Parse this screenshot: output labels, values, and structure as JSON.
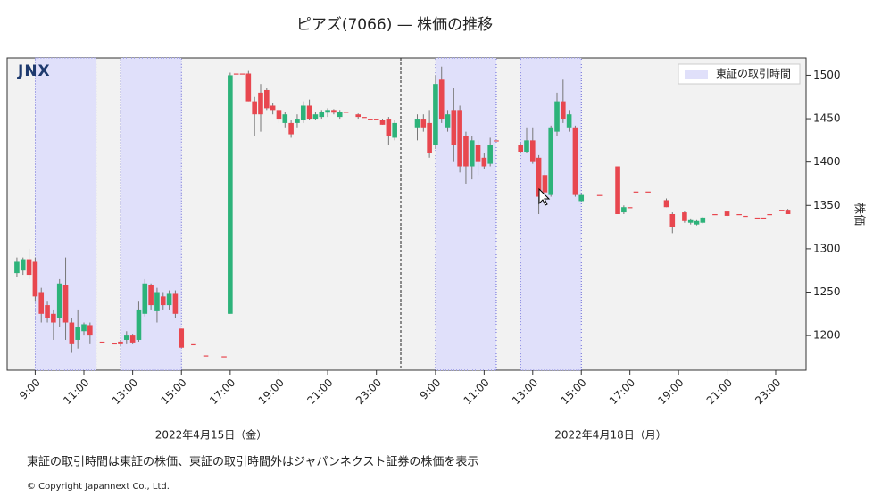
{
  "chart_data": {
    "type": "candlestick",
    "title": "ピアズ(7066) — 株価の推移",
    "logo": "JNX",
    "ylabel": "株価",
    "ylim": [
      1160,
      1520
    ],
    "yticks": [
      1200,
      1250,
      1300,
      1350,
      1400,
      1450,
      1500
    ],
    "up_color": "#2db37a",
    "down_color": "#e8474f",
    "legend": {
      "label": "東証の取引時間",
      "color": "#e0e0fa",
      "corner": "upper right"
    },
    "candle_fields": [
      "t",
      "o",
      "h",
      "l",
      "c"
    ],
    "sessions": [
      {
        "date": "2022年4月15日（金）",
        "xlim": [
          7.85,
          24
        ],
        "tse_hours": [
          [
            9,
            11.5
          ],
          [
            12.5,
            15
          ]
        ],
        "xticks": [
          {
            "value": 9,
            "label": "9:00"
          },
          {
            "value": 11,
            "label": "11:00"
          },
          {
            "value": 13,
            "label": "13:00"
          },
          {
            "value": 15,
            "label": "15:00"
          },
          {
            "value": 17,
            "label": "17:00"
          },
          {
            "value": 19,
            "label": "19:00"
          },
          {
            "value": 21,
            "label": "21:00"
          },
          {
            "value": 23,
            "label": "23:00"
          }
        ],
        "candles": [
          [
            8.25,
            1272,
            1290,
            1268,
            1285
          ],
          [
            8.5,
            1275,
            1290,
            1270,
            1288
          ],
          [
            8.75,
            1288,
            1300,
            1265,
            1270
          ],
          [
            9.0,
            1285,
            1290,
            1240,
            1245
          ],
          [
            9.25,
            1250,
            1255,
            1215,
            1225
          ],
          [
            9.5,
            1235,
            1240,
            1215,
            1220
          ],
          [
            9.75,
            1225,
            1230,
            1195,
            1215
          ],
          [
            10.0,
            1220,
            1265,
            1210,
            1260
          ],
          [
            10.25,
            1258,
            1290,
            1195,
            1215
          ],
          [
            10.5,
            1215,
            1220,
            1180,
            1190
          ],
          [
            10.75,
            1195,
            1230,
            1185,
            1210
          ],
          [
            11.0,
            1205,
            1215,
            1200,
            1213
          ],
          [
            11.25,
            1212,
            1215,
            1190,
            1200
          ],
          [
            11.75,
            1193,
            1193,
            1193,
            1193
          ],
          [
            12.25,
            1191,
            1191,
            1191,
            1191
          ],
          [
            12.5,
            1193,
            1195,
            1188,
            1190
          ],
          [
            12.75,
            1195,
            1205,
            1190,
            1200
          ],
          [
            13.0,
            1200,
            1202,
            1190,
            1192
          ],
          [
            13.25,
            1195,
            1240,
            1193,
            1230
          ],
          [
            13.5,
            1225,
            1265,
            1222,
            1260
          ],
          [
            13.75,
            1258,
            1260,
            1230,
            1235
          ],
          [
            14.0,
            1228,
            1255,
            1215,
            1250
          ],
          [
            14.25,
            1245,
            1250,
            1230,
            1235
          ],
          [
            14.5,
            1235,
            1252,
            1230,
            1248
          ],
          [
            14.75,
            1248,
            1252,
            1220,
            1225
          ],
          [
            15.0,
            1208,
            1208,
            1186,
            1186
          ],
          [
            15.5,
            1190,
            1190,
            1190,
            1190
          ],
          [
            16.0,
            1177,
            1177,
            1177,
            1177
          ],
          [
            16.75,
            1176,
            1176,
            1176,
            1176
          ],
          [
            17.0,
            1225,
            1503,
            1225,
            1500
          ],
          [
            17.25,
            1502,
            1502,
            1502,
            1502
          ],
          [
            17.5,
            1502,
            1502,
            1502,
            1502
          ],
          [
            17.75,
            1502,
            1505,
            1470,
            1470
          ],
          [
            18.0,
            1470,
            1475,
            1430,
            1455
          ],
          [
            18.25,
            1480,
            1490,
            1435,
            1455
          ],
          [
            18.5,
            1483,
            1485,
            1460,
            1462
          ],
          [
            18.75,
            1465,
            1468,
            1455,
            1460
          ],
          [
            19.0,
            1460,
            1462,
            1445,
            1450
          ],
          [
            19.25,
            1445,
            1458,
            1440,
            1455
          ],
          [
            19.5,
            1445,
            1448,
            1428,
            1432
          ],
          [
            19.75,
            1445,
            1455,
            1440,
            1450
          ],
          [
            20.0,
            1448,
            1470,
            1445,
            1465
          ],
          [
            20.25,
            1465,
            1472,
            1448,
            1450
          ],
          [
            20.5,
            1450,
            1458,
            1448,
            1455
          ],
          [
            20.75,
            1452,
            1460,
            1450,
            1458
          ],
          [
            21.0,
            1457,
            1462,
            1452,
            1460
          ],
          [
            21.25,
            1460,
            1461,
            1455,
            1457
          ],
          [
            21.5,
            1452,
            1460,
            1450,
            1458
          ],
          [
            21.75,
            1458,
            1458,
            1458,
            1458
          ],
          [
            22.25,
            1455,
            1456,
            1450,
            1452
          ],
          [
            22.5,
            1452,
            1452,
            1452,
            1452
          ],
          [
            22.75,
            1450,
            1450,
            1450,
            1450
          ],
          [
            23.0,
            1450,
            1450,
            1450,
            1450
          ],
          [
            23.25,
            1448,
            1450,
            1443,
            1443
          ],
          [
            23.5,
            1450,
            1452,
            1420,
            1430
          ],
          [
            23.75,
            1428,
            1448,
            1425,
            1445
          ]
        ]
      },
      {
        "date": "2022年4月18日（月）",
        "xlim": [
          7.57,
          24.25
        ],
        "tse_hours": [
          [
            9,
            11.5
          ],
          [
            12.5,
            15
          ]
        ],
        "xticks": [
          {
            "value": 9,
            "label": "9:00"
          },
          {
            "value": 11,
            "label": "11:00"
          },
          {
            "value": 13,
            "label": "13:00"
          },
          {
            "value": 15,
            "label": "15:00"
          },
          {
            "value": 17,
            "label": "17:00"
          },
          {
            "value": 19,
            "label": "19:00"
          },
          {
            "value": 21,
            "label": "21:00"
          },
          {
            "value": 23,
            "label": "23:00"
          }
        ],
        "candles": [
          [
            8.25,
            1440,
            1455,
            1425,
            1450
          ],
          [
            8.5,
            1450,
            1455,
            1435,
            1440
          ],
          [
            8.75,
            1445,
            1460,
            1405,
            1410
          ],
          [
            9.0,
            1420,
            1500,
            1415,
            1490
          ],
          [
            9.25,
            1495,
            1510,
            1445,
            1450
          ],
          [
            9.5,
            1440,
            1460,
            1435,
            1455
          ],
          [
            9.75,
            1460,
            1485,
            1400,
            1420
          ],
          [
            10.0,
            1460,
            1465,
            1388,
            1395
          ],
          [
            10.25,
            1430,
            1435,
            1375,
            1395
          ],
          [
            10.5,
            1395,
            1430,
            1380,
            1425
          ],
          [
            10.75,
            1420,
            1425,
            1385,
            1400
          ],
          [
            11.0,
            1405,
            1410,
            1392,
            1395
          ],
          [
            11.25,
            1398,
            1428,
            1395,
            1420
          ],
          [
            11.5,
            1425,
            1425,
            1425,
            1425
          ],
          [
            12.5,
            1420,
            1422,
            1410,
            1412
          ],
          [
            12.75,
            1412,
            1440,
            1410,
            1425
          ],
          [
            13.0,
            1425,
            1440,
            1398,
            1400
          ],
          [
            13.25,
            1405,
            1408,
            1340,
            1360
          ],
          [
            13.5,
            1385,
            1390,
            1350,
            1365
          ],
          [
            13.75,
            1362,
            1442,
            1360,
            1440
          ],
          [
            14.0,
            1435,
            1480,
            1430,
            1470
          ],
          [
            14.25,
            1470,
            1495,
            1445,
            1450
          ],
          [
            14.5,
            1440,
            1460,
            1435,
            1455
          ],
          [
            14.75,
            1440,
            1442,
            1360,
            1362
          ],
          [
            15.0,
            1355,
            1364,
            1355,
            1362
          ],
          [
            15.75,
            1362,
            1362,
            1362,
            1362
          ],
          [
            16.5,
            1395,
            1395,
            1340,
            1340
          ],
          [
            16.75,
            1342,
            1350,
            1340,
            1348
          ],
          [
            17.0,
            1348,
            1348,
            1348,
            1348
          ],
          [
            17.25,
            1366,
            1366,
            1366,
            1366
          ],
          [
            17.75,
            1366,
            1366,
            1366,
            1366
          ],
          [
            18.5,
            1356,
            1358,
            1348,
            1348
          ],
          [
            18.75,
            1340,
            1342,
            1318,
            1325
          ],
          [
            19.25,
            1342,
            1343,
            1330,
            1332
          ],
          [
            19.5,
            1330,
            1335,
            1328,
            1333
          ],
          [
            19.75,
            1328,
            1333,
            1327,
            1332
          ],
          [
            20.0,
            1330,
            1337,
            1329,
            1336
          ],
          [
            20.5,
            1340,
            1340,
            1340,
            1340
          ],
          [
            21.0,
            1343,
            1344,
            1337,
            1338
          ],
          [
            21.5,
            1340,
            1340,
            1340,
            1340
          ],
          [
            21.75,
            1338,
            1338,
            1338,
            1338
          ],
          [
            22.25,
            1336,
            1336,
            1336,
            1336
          ],
          [
            22.5,
            1336,
            1336,
            1336,
            1336
          ],
          [
            22.75,
            1340,
            1340,
            1340,
            1340
          ],
          [
            23.25,
            1345,
            1345,
            1345,
            1345
          ],
          [
            23.5,
            1345,
            1346,
            1340,
            1340
          ]
        ]
      }
    ],
    "note": "東証の取引時間は東証の株価、東証の取引時間外はジャパンネクスト証券の株価を表示",
    "copyright": "© Copyright  Japannext  Co.,  Ltd."
  }
}
